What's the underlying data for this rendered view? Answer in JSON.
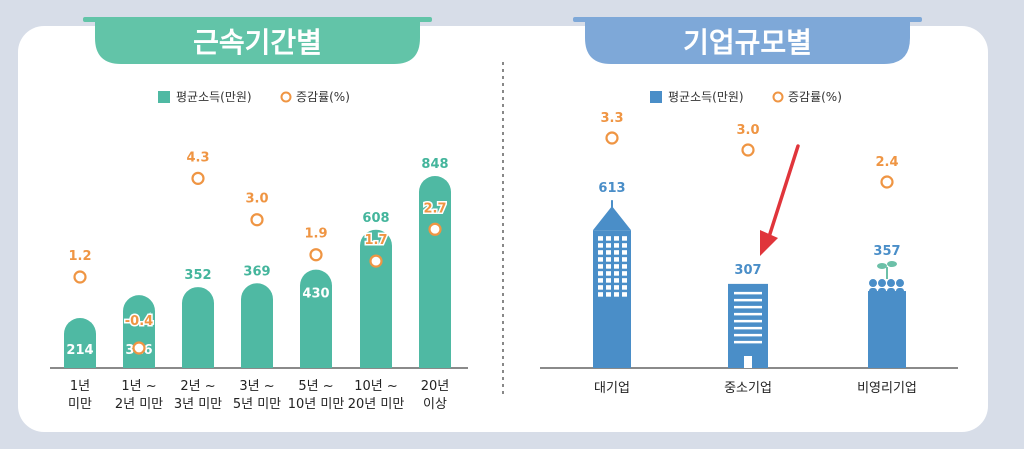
{
  "colors": {
    "tenure_accent": "#62c4a8",
    "tenure_bar": "#4fb9a3",
    "size_accent": "#7ea8d8",
    "size_bar": "#4a8ec8",
    "rate_marker": "#ef9543",
    "income_label_tenure": "#44b59c",
    "income_label_size": "#4a8ec8",
    "arrow": "#e0353b"
  },
  "chart_data": [
    {
      "type": "bar",
      "title": "근속기간별",
      "legend": {
        "placement": "top-center",
        "bar_label": "평균소득(만원)",
        "marker_label": "증감률(%)"
      },
      "categories": [
        [
          "1년",
          "미만"
        ],
        [
          "1년 ~",
          "2년 미만"
        ],
        [
          "2년 ~",
          "3년 미만"
        ],
        [
          "3년 ~",
          "5년 미만"
        ],
        [
          "5년 ~",
          "10년 미만"
        ],
        [
          "10년 ~",
          "20년 미만"
        ],
        [
          "20년",
          "이상"
        ]
      ],
      "series": [
        {
          "name": "평균소득(만원)",
          "values": [
            214,
            316,
            352,
            369,
            430,
            608,
            848
          ]
        },
        {
          "name": "증감률(%)",
          "values": [
            1.2,
            -0.4,
            4.3,
            3.0,
            1.9,
            1.7,
            2.7
          ]
        }
      ],
      "value_labels": [
        "214",
        "316",
        "352",
        "369",
        "430",
        "608",
        "848"
      ],
      "rate_labels": [
        "1.2",
        "-0.4",
        "4.3",
        "3.0",
        "1.9",
        "1.7",
        "2.7"
      ],
      "grid": false
    },
    {
      "type": "bar",
      "title": "기업규모별",
      "legend": {
        "placement": "top-center",
        "bar_label": "평균소득(만원)",
        "marker_label": "증감률(%)"
      },
      "categories": [
        "대기업",
        "중소기업",
        "비영리기업"
      ],
      "icons": [
        "skyscraper-icon",
        "office-building-icon",
        "sprout-building-icon"
      ],
      "series": [
        {
          "name": "평균소득(만원)",
          "values": [
            613,
            307,
            357
          ]
        },
        {
          "name": "증감률(%)",
          "values": [
            3.3,
            3.0,
            2.4
          ]
        }
      ],
      "value_labels": [
        "613",
        "307",
        "357"
      ],
      "rate_labels": [
        "3.3",
        "3.0",
        "2.4"
      ],
      "grid": false
    }
  ]
}
